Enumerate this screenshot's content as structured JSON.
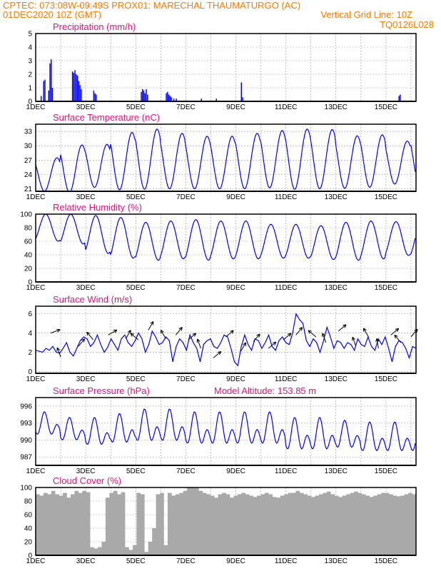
{
  "header": {
    "line1": "CPTEC:   073:08W-09:49S   PROX01: MARECHAL THAUMATURGO (AC)",
    "line2": "01DEC2020 10Z (GMT)",
    "grid_note": "Vertical Grid Line: 10Z",
    "code": "TQ0126L028"
  },
  "colors": {
    "header": "#ff7a00",
    "panel_title": "#e0147a",
    "series": "#0000ff",
    "cloud": "#a9a9a9",
    "grid": "#999999"
  },
  "x_ticks": [
    "1DEC",
    "3DEC",
    "5DEC",
    "7DEC",
    "9DEC",
    "11DEC",
    "13DEC",
    "15DEC"
  ],
  "chart_data": [
    {
      "type": "bar",
      "title": "Precipitation (mm/h)",
      "ylim": [
        0,
        5
      ],
      "yticks": [
        0,
        1,
        2,
        3,
        4,
        5
      ],
      "bars": [
        [
          0.2,
          0.4
        ],
        [
          0.3,
          1.5
        ],
        [
          0.35,
          1.6
        ],
        [
          0.5,
          0.8
        ],
        [
          0.55,
          2.8
        ],
        [
          0.6,
          3.1
        ],
        [
          0.65,
          1.0
        ],
        [
          1.45,
          2.2
        ],
        [
          1.5,
          2.1
        ],
        [
          1.55,
          2.3
        ],
        [
          1.6,
          2.0
        ],
        [
          1.65,
          1.9
        ],
        [
          1.7,
          1.5
        ],
        [
          1.75,
          1.2
        ],
        [
          1.8,
          0.9
        ],
        [
          2.3,
          0.8
        ],
        [
          2.35,
          0.6
        ],
        [
          2.4,
          0.5
        ],
        [
          4.2,
          0.7
        ],
        [
          4.25,
          0.9
        ],
        [
          4.3,
          0.8
        ],
        [
          4.35,
          0.6
        ],
        [
          4.4,
          0.9
        ],
        [
          4.45,
          0.5
        ],
        [
          5.2,
          0.6
        ],
        [
          5.25,
          0.7
        ],
        [
          5.3,
          0.5
        ],
        [
          5.35,
          0.4
        ],
        [
          5.4,
          0.3
        ],
        [
          5.5,
          0.2
        ],
        [
          5.6,
          0.2
        ],
        [
          6.6,
          0.2
        ],
        [
          7.2,
          0.2
        ],
        [
          8.2,
          1.4
        ],
        [
          8.25,
          0.3
        ],
        [
          14.5,
          0.4
        ],
        [
          14.55,
          0.5
        ]
      ]
    },
    {
      "type": "line",
      "title": "Surface Temperature (nC)",
      "ylim": [
        20.5,
        34.5
      ],
      "yticks": [
        21,
        24,
        27,
        30,
        33
      ],
      "mean": [
        24,
        25.2,
        25.8,
        26.8,
        27.2,
        26.8,
        26.5,
        26.5,
        26.8,
        27.2,
        27.2,
        27.2,
        26.6,
        26.8,
        26.5,
        26.8
      ],
      "amp": [
        3.5,
        5.0,
        4.5,
        6.0,
        6.3,
        5.8,
        5.5,
        5.5,
        5.8,
        6.0,
        6.3,
        6.2,
        5.5,
        5.5,
        4.5,
        5.5
      ],
      "min_phase": 0.4,
      "max_phase": 0.85
    },
    {
      "type": "line",
      "title": "Relative Humidity (%)",
      "ylim": [
        0,
        100
      ],
      "yticks": [
        0,
        20,
        40,
        60,
        80,
        100
      ],
      "mean": [
        80,
        78,
        70,
        65,
        60,
        62,
        62,
        62,
        62,
        60,
        60,
        58,
        60,
        62,
        64,
        62
      ],
      "amp": [
        20,
        22,
        28,
        30,
        28,
        28,
        30,
        28,
        28,
        25,
        25,
        25,
        28,
        28,
        25,
        25
      ],
      "min_phase": 0.85,
      "max_phase": 0.4
    },
    {
      "type": "line",
      "title": "Surface Wind (m/s)",
      "ylim": [
        -0.2,
        6.8
      ],
      "yticks": [
        0,
        2,
        4,
        6
      ],
      "values": [
        2.2,
        2.1,
        2.0,
        2.4,
        2.2,
        2.6,
        2.0,
        1.9,
        2.4,
        3.0,
        2.0,
        1.6,
        2.4,
        3.2,
        3.6,
        3.4,
        2.6,
        3.0,
        3.8,
        2.8,
        2.0,
        2.5,
        3.4,
        2.8,
        2.2,
        3.4,
        3.8,
        3.0,
        2.6,
        3.2,
        4.0,
        3.4,
        2.0,
        2.8,
        4.2,
        3.6,
        2.8,
        3.0,
        3.6,
        3.2,
        1.0,
        2.6,
        3.4,
        3.0,
        2.2,
        3.8,
        3.0,
        2.4,
        1.0,
        2.8,
        3.2,
        3.4,
        2.6,
        2.4,
        3.0,
        3.8,
        3.6,
        2.4,
        1.0,
        0.6,
        2.6,
        3.8,
        2.8,
        2.2,
        3.4,
        3.2,
        2.4,
        3.0,
        3.8,
        2.6,
        2.2,
        3.2,
        3.6,
        3.0,
        2.8,
        4.0,
        6.0,
        5.4,
        5.0,
        3.2,
        2.6,
        3.4,
        3.0,
        2.0,
        3.2,
        4.6,
        3.6,
        2.4,
        3.2,
        3.0,
        2.4,
        3.0,
        2.8,
        2.2,
        3.4,
        2.8,
        2.6,
        3.6,
        2.6,
        2.2,
        3.4,
        2.8,
        3.6,
        2.4,
        1.0,
        2.6,
        3.2,
        3.0,
        2.4,
        1.4,
        2.6,
        2.4
      ]
    },
    {
      "type": "line",
      "title": "Surface Pressure (hPa)",
      "note": "Model Altitude: 153.85 m",
      "ylim": [
        985.5,
        997.5
      ],
      "yticks": [
        987,
        990,
        993,
        996
      ],
      "mean": [
        992.5,
        991.5,
        991.0,
        991.5,
        992.0,
        992.0,
        991.5,
        991.5,
        991.5,
        991.5,
        990.5,
        990.5,
        990.5,
        990.0,
        990.0,
        990.0
      ],
      "amp": [
        2.5,
        2.5,
        3.0,
        3.2,
        3.5,
        3.5,
        3.5,
        3.5,
        3.5,
        3.5,
        3.5,
        3.5,
        3.0,
        3.2,
        3.2,
        3.2
      ]
    },
    {
      "type": "area",
      "title": "Cloud Cover (%)",
      "ylim": [
        0,
        100
      ],
      "yticks": [
        0,
        20,
        40,
        60,
        80,
        100
      ],
      "values": [
        90,
        88,
        92,
        90,
        95,
        90,
        88,
        92,
        85,
        90,
        95,
        92,
        95,
        93,
        12,
        10,
        12,
        20,
        85,
        92,
        95,
        90,
        93,
        12,
        8,
        15,
        92,
        90,
        5,
        20,
        40,
        90,
        92,
        15,
        92,
        88,
        90,
        92,
        95,
        100,
        100,
        100,
        95,
        92,
        90,
        88,
        85,
        90,
        92,
        90,
        85,
        88,
        90,
        92,
        90,
        88,
        86,
        88,
        90,
        92,
        90,
        86,
        85,
        88,
        90,
        92,
        92,
        95,
        92,
        90,
        88,
        86,
        88,
        90,
        92,
        94,
        90,
        88,
        86,
        88,
        90,
        92,
        94,
        92,
        90,
        88,
        86,
        88,
        90,
        92,
        92,
        90,
        88,
        87,
        88,
        90,
        92,
        90
      ]
    }
  ]
}
